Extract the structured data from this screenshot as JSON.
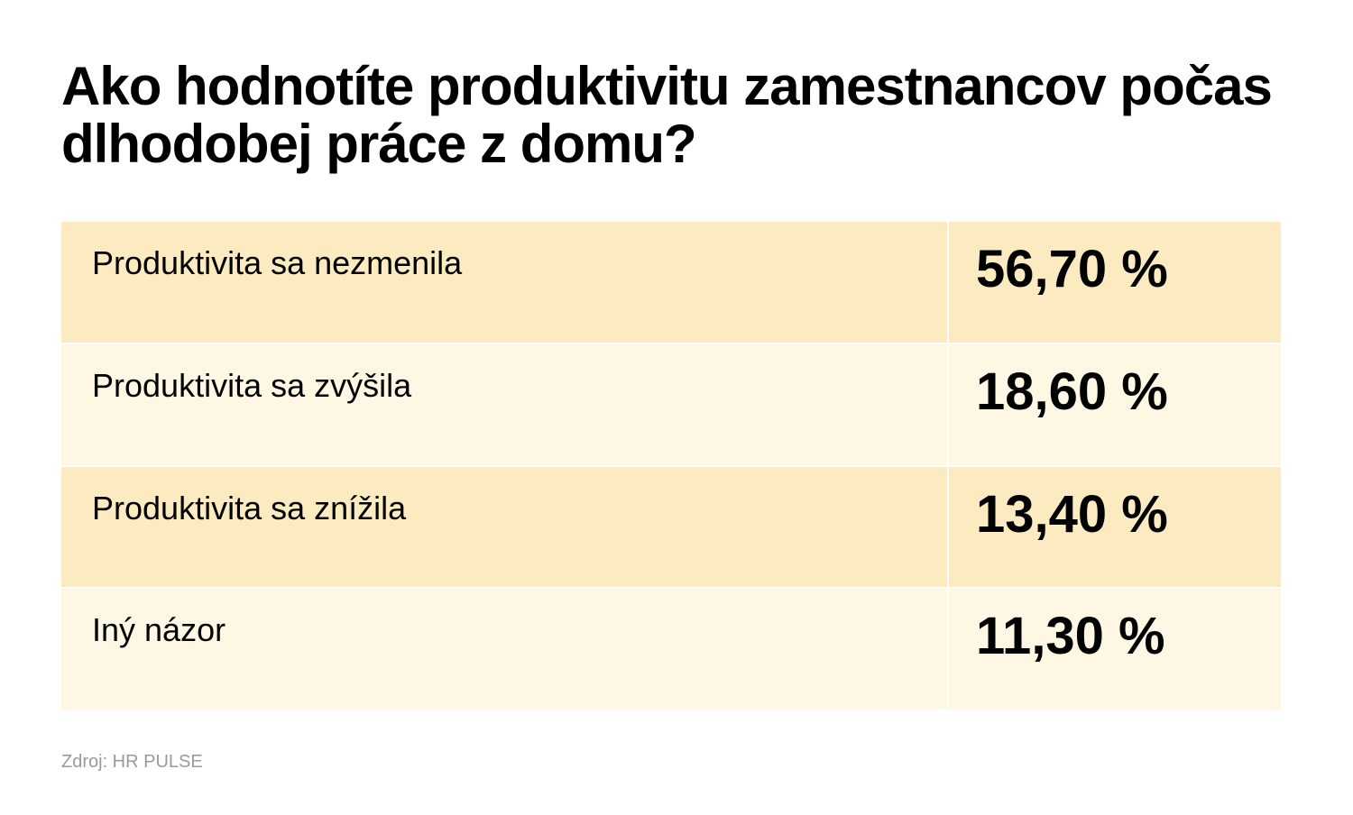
{
  "chart_data": {
    "type": "table",
    "title": "Ako hodnotíte produktivitu zamestnancov počas dlhodobej práce z domu?",
    "columns": [],
    "rows": [
      {
        "label": "Produktivita sa nezmenila",
        "value": 56.7,
        "display": "56,70 %"
      },
      {
        "label": "Produktivita sa zvýšila",
        "value": 18.6,
        "display": "18,60 %"
      },
      {
        "label": "Produktivita sa znížila",
        "value": 13.4,
        "display": "13,40 %"
      },
      {
        "label": "Iný názor",
        "value": 11.3,
        "display": "11,30 %"
      }
    ],
    "row_colors": [
      "#fcebc0",
      "#fef7e3"
    ],
    "source": "Zdroj: HR PULSE"
  }
}
